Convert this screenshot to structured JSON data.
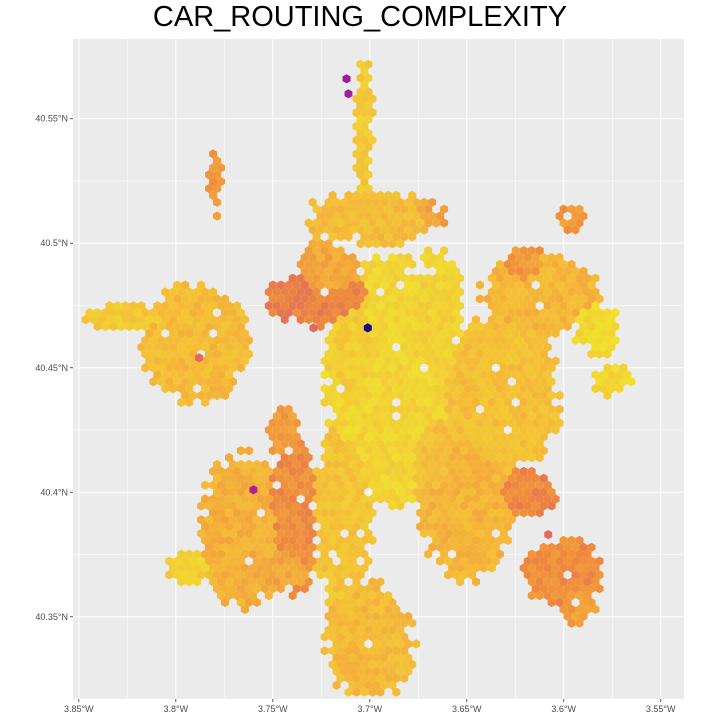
{
  "title": "CAR_ROUTING_COMPLEXITY",
  "colors": {
    "panel_background": "#ebebeb",
    "gridline": "#ffffff",
    "low": "#f0e52a",
    "mid": "#f5b638",
    "high": "#ef8a3c",
    "very_high": "#d95a6b",
    "extreme_purple": "#9c1a9f",
    "extreme_navy": "#0d0887"
  },
  "chart_data": {
    "type": "hexbin",
    "title": "CAR_ROUTING_COMPLEXITY",
    "xlabel": "",
    "ylabel": "",
    "xlim": [
      -3.853,
      -3.538
    ],
    "ylim": [
      40.317,
      40.582
    ],
    "x_ticks": [
      {
        "value": -3.85,
        "label": "3.85°W"
      },
      {
        "value": -3.8,
        "label": "3.8°W"
      },
      {
        "value": -3.75,
        "label": "3.75°W"
      },
      {
        "value": -3.7,
        "label": "3.7°W"
      },
      {
        "value": -3.65,
        "label": "3.65°W"
      },
      {
        "value": -3.6,
        "label": "3.6°W"
      },
      {
        "value": -3.55,
        "label": "3.55°W"
      }
    ],
    "y_ticks": [
      {
        "value": 40.35,
        "label": "40.35°N"
      },
      {
        "value": 40.4,
        "label": "40.4°N"
      },
      {
        "value": 40.45,
        "label": "40.45°N"
      },
      {
        "value": 40.5,
        "label": "40.5°N"
      },
      {
        "value": 40.55,
        "label": "40.55°N"
      }
    ],
    "grid": true,
    "legend": "none",
    "color_scale": "plasma",
    "value_range": [
      0,
      1
    ],
    "regions": [
      {
        "lon": -3.69,
        "lat": 40.445,
        "rx": 0.034,
        "ry": 0.052,
        "value": 0.93
      },
      {
        "lon": -3.705,
        "lat": 40.455,
        "rx": 0.018,
        "ry": 0.028,
        "value": 0.9
      },
      {
        "lon": -3.666,
        "lat": 40.47,
        "rx": 0.016,
        "ry": 0.03,
        "value": 0.92
      },
      {
        "lon": -3.714,
        "lat": 40.39,
        "rx": 0.016,
        "ry": 0.04,
        "value": 0.86
      },
      {
        "lon": -3.7,
        "lat": 40.34,
        "rx": 0.024,
        "ry": 0.025,
        "value": 0.82
      },
      {
        "lon": -3.668,
        "lat": 40.415,
        "rx": 0.014,
        "ry": 0.02,
        "value": 0.84
      },
      {
        "lon": -3.65,
        "lat": 40.395,
        "rx": 0.026,
        "ry": 0.032,
        "value": 0.8
      },
      {
        "lon": -3.633,
        "lat": 40.44,
        "rx": 0.033,
        "ry": 0.035,
        "value": 0.84
      },
      {
        "lon": -3.7,
        "lat": 40.51,
        "rx": 0.035,
        "ry": 0.012,
        "value": 0.83
      },
      {
        "lon": -3.722,
        "lat": 40.485,
        "rx": 0.018,
        "ry": 0.018,
        "value": 0.75
      },
      {
        "lon": -3.725,
        "lat": 40.478,
        "rx": 0.03,
        "ry": 0.012,
        "value": 0.62
      },
      {
        "lon": -3.668,
        "lat": 40.512,
        "rx": 0.009,
        "ry": 0.006,
        "value": 0.74
      },
      {
        "lon": -3.612,
        "lat": 40.48,
        "rx": 0.032,
        "ry": 0.017,
        "value": 0.8
      },
      {
        "lon": -3.62,
        "lat": 40.49,
        "rx": 0.012,
        "ry": 0.01,
        "value": 0.7
      },
      {
        "lon": -3.596,
        "lat": 40.51,
        "rx": 0.008,
        "ry": 0.006,
        "value": 0.7
      },
      {
        "lon": -3.583,
        "lat": 40.465,
        "rx": 0.012,
        "ry": 0.012,
        "value": 0.94
      },
      {
        "lon": -3.575,
        "lat": 40.445,
        "rx": 0.012,
        "ry": 0.007,
        "value": 0.94
      },
      {
        "lon": -3.62,
        "lat": 40.4,
        "rx": 0.017,
        "ry": 0.01,
        "value": 0.64
      },
      {
        "lon": -3.6,
        "lat": 40.368,
        "rx": 0.022,
        "ry": 0.015,
        "value": 0.66
      },
      {
        "lon": -3.593,
        "lat": 40.356,
        "rx": 0.01,
        "ry": 0.01,
        "value": 0.72
      },
      {
        "lon": -3.765,
        "lat": 40.385,
        "rx": 0.024,
        "ry": 0.033,
        "value": 0.78
      },
      {
        "lon": -3.74,
        "lat": 40.39,
        "rx": 0.015,
        "ry": 0.033,
        "value": 0.66
      },
      {
        "lon": -3.744,
        "lat": 40.37,
        "rx": 0.015,
        "ry": 0.01,
        "value": 0.74
      },
      {
        "lon": -3.793,
        "lat": 40.37,
        "rx": 0.012,
        "ry": 0.008,
        "value": 0.9
      },
      {
        "lon": -3.79,
        "lat": 40.46,
        "rx": 0.03,
        "ry": 0.025,
        "value": 0.82
      },
      {
        "lon": -3.825,
        "lat": 40.47,
        "rx": 0.025,
        "ry": 0.006,
        "value": 0.88
      },
      {
        "lon": -3.745,
        "lat": 40.425,
        "rx": 0.01,
        "ry": 0.01,
        "value": 0.72
      },
      {
        "lon": -3.78,
        "lat": 40.525,
        "rx": 0.004,
        "ry": 0.015,
        "value": 0.7
      },
      {
        "lon": -3.703,
        "lat": 40.548,
        "rx": 0.005,
        "ry": 0.03,
        "value": 0.88
      }
    ],
    "highlight_cells": [
      {
        "lon": -3.712,
        "lat": 40.566,
        "value": 0.25
      },
      {
        "lon": -3.711,
        "lat": 40.56,
        "value": 0.28
      },
      {
        "lon": -3.701,
        "lat": 40.466,
        "value": 0.02
      },
      {
        "lon": -3.76,
        "lat": 40.401,
        "value": 0.3
      },
      {
        "lon": -3.729,
        "lat": 40.466,
        "value": 0.55
      },
      {
        "lon": -3.788,
        "lat": 40.454,
        "value": 0.55
      },
      {
        "lon": -3.608,
        "lat": 40.383,
        "value": 0.55
      }
    ]
  }
}
